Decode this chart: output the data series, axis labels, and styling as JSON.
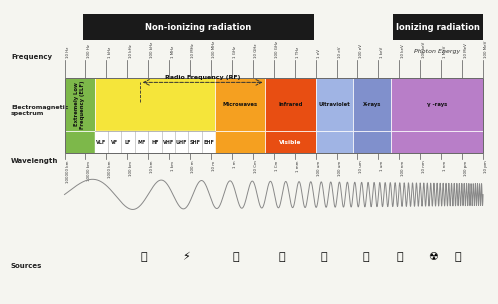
{
  "non_ionizing_label": "Non-ionizing radiation",
  "ionizing_label": "Ionizing radiation",
  "photon_energy_label": "Photon Energy",
  "frequency_label": "Frequency",
  "em_spectrum_label": "Electromagnetic\nspectrum",
  "wavelength_label": "Wavelength",
  "sources_label": "Sources",
  "rf_label": "Radio Frequency (RF)",
  "visible_label": "Visible",
  "freq_ticks": [
    "10 Hz",
    "100 Hz",
    "1 kHz",
    "10 kHz",
    "100 kHz",
    "1 MHz",
    "10 MHz",
    "100 MHz",
    "1 GHz",
    "10 GHz",
    "100 GHz",
    "1 THz",
    "1 eV",
    "10 eV",
    "100 eV",
    "1 keV",
    "10 keV",
    "100 keV",
    "1 MeV",
    "10 MeV",
    "100 MeV"
  ],
  "wavelength_ticks": [
    "100000 km",
    "10000 km",
    "1000 km",
    "100 km",
    "10 km",
    "1 km",
    "100 m",
    "10 m",
    "1 m",
    "10 Cm",
    "1 Cm",
    "1 mm",
    "100 um",
    "100 um",
    "10 um",
    "1 um",
    "100 nm",
    "10 nm",
    "1 nm",
    "100 pm",
    "10 pm",
    "1 pm"
  ],
  "segments": [
    {
      "label": "Extremely Low\nFrequency (ELF)",
      "color": "#7db84a",
      "xf": 0.0,
      "wf": 0.072,
      "sub": [],
      "rot": true
    },
    {
      "label": "",
      "color": "#f5e53a",
      "xf": 0.072,
      "wf": 0.288,
      "sub": [
        "VLF",
        "VF",
        "LF",
        "MF",
        "HF",
        "VHF",
        "UHF",
        "SHF",
        "EHF"
      ],
      "rot": false
    },
    {
      "label": "Microwaves",
      "color": "#f5a020",
      "xf": 0.36,
      "wf": 0.12,
      "sub": [],
      "rot": false
    },
    {
      "label": "Infrared",
      "color": "#e84e12",
      "xf": 0.48,
      "wf": 0.12,
      "sub": [],
      "rot": false
    },
    {
      "label": "Ultraviolet",
      "color": "#a0b4e4",
      "xf": 0.6,
      "wf": 0.09,
      "sub": [],
      "rot": false
    },
    {
      "label": "X-rays",
      "color": "#8090cc",
      "xf": 0.69,
      "wf": 0.09,
      "sub": [],
      "rot": false
    },
    {
      "label": "γ -rays",
      "color": "#b87ec8",
      "xf": 0.78,
      "wf": 0.22,
      "sub": [],
      "rot": false
    }
  ],
  "background_color": "#f5f5f0",
  "header_box_color": "#1a1a1a",
  "label_color": "#222222",
  "tick_color": "#555555"
}
